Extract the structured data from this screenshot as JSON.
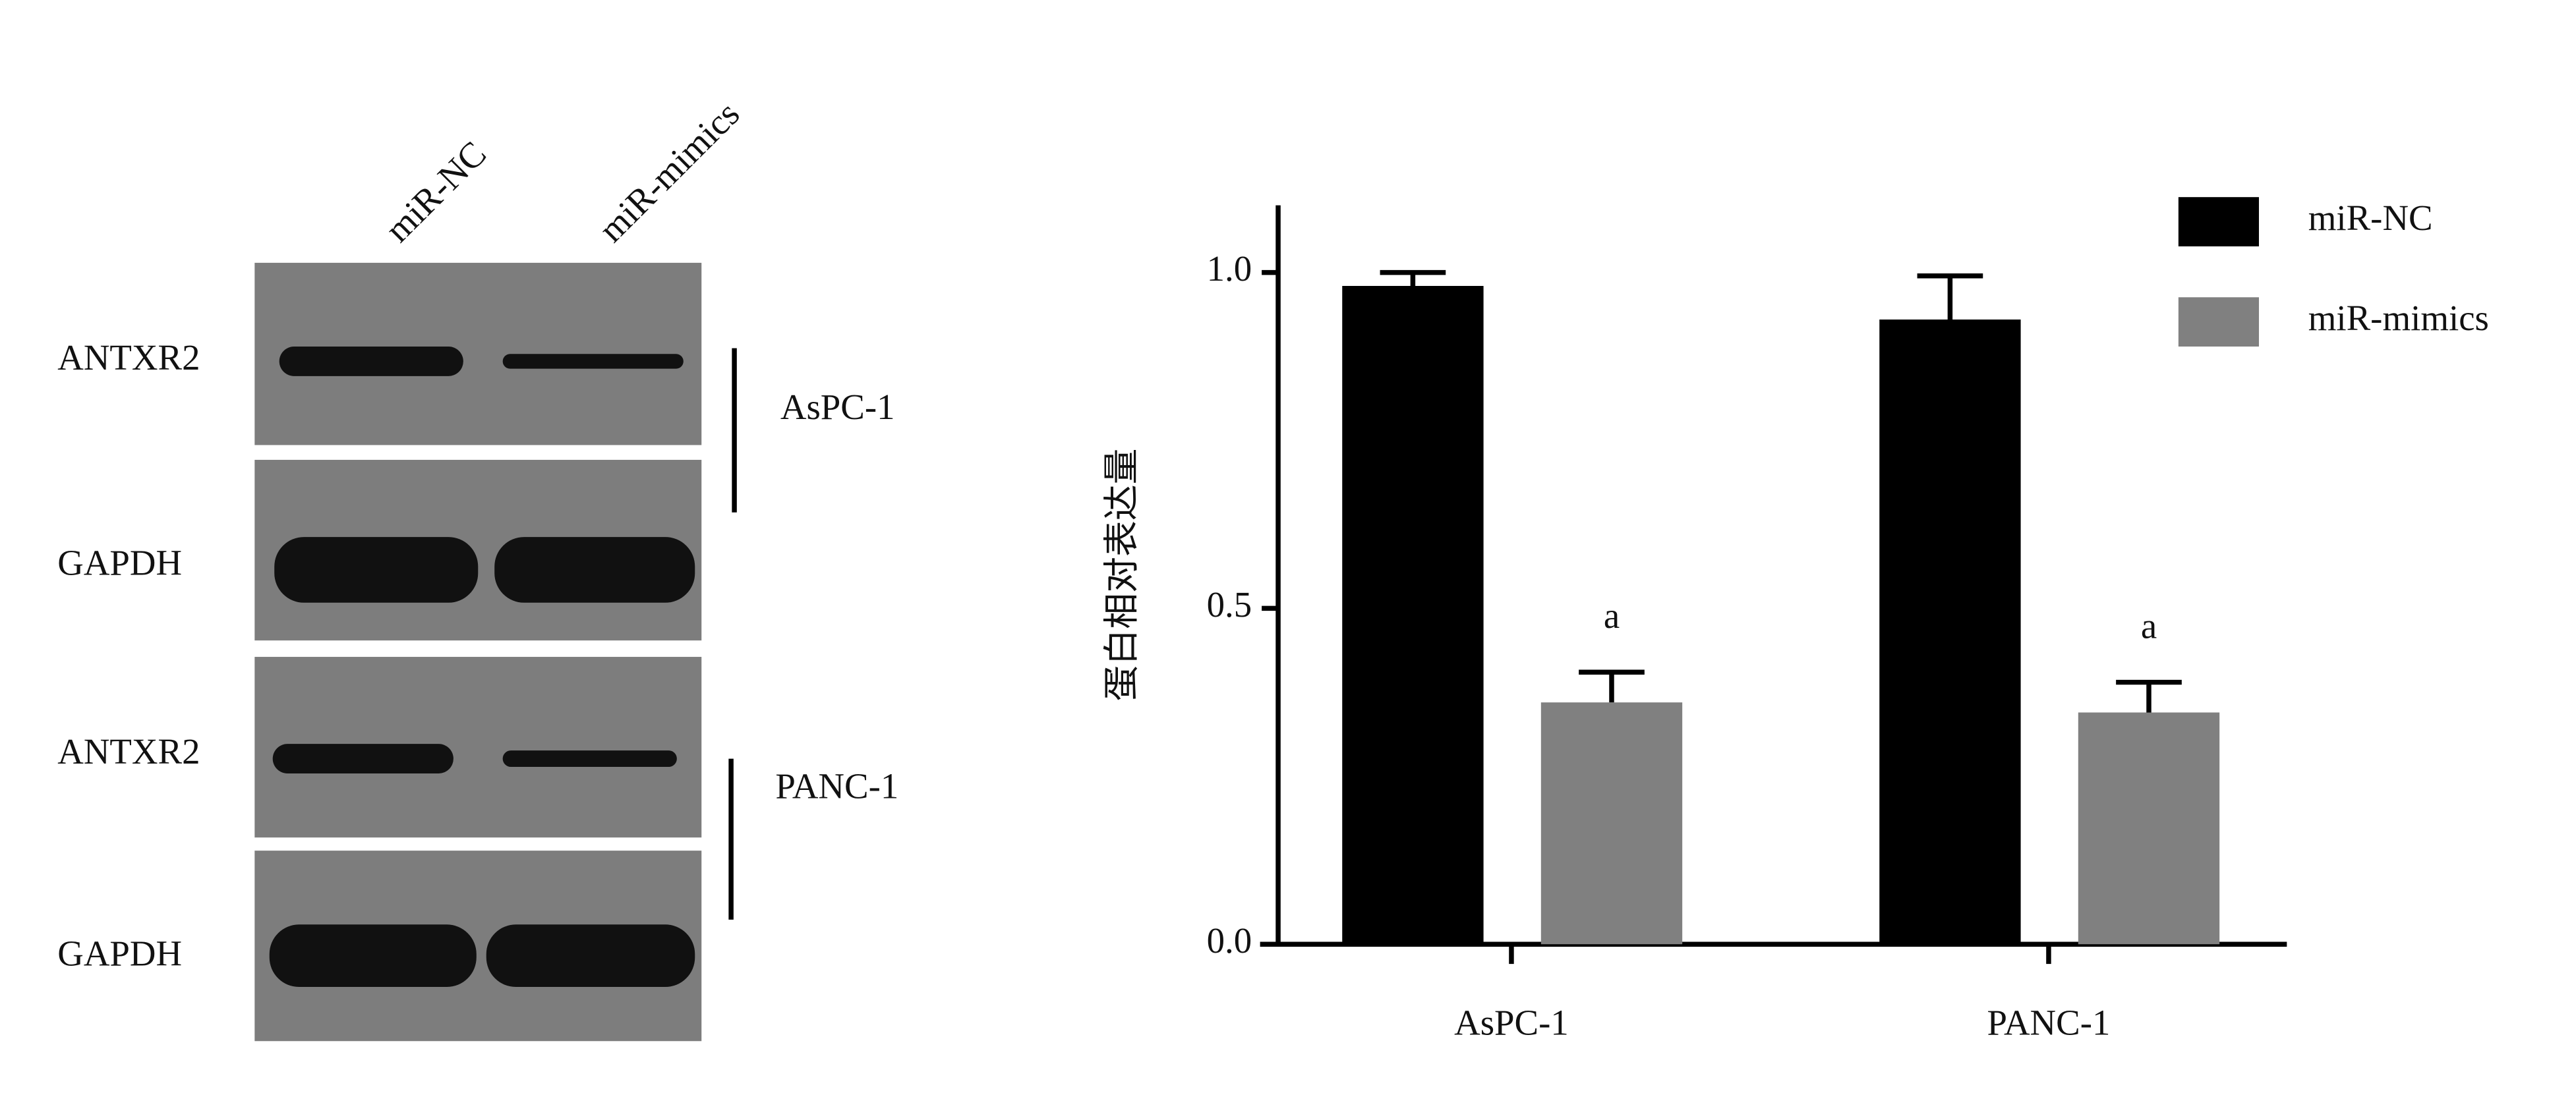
{
  "blot": {
    "lanes": [
      "miR-NC",
      "miR-mimics"
    ],
    "groups": [
      {
        "name": "AsPC-1",
        "rows": [
          "ANTXR2",
          "GAPDH"
        ]
      },
      {
        "name": "PANC-1",
        "rows": [
          "ANTXR2",
          "GAPDH"
        ]
      }
    ]
  },
  "chart_data": {
    "type": "bar",
    "y_label": "蛋白相对表达量",
    "categories": [
      "AsPC-1",
      "PANC-1"
    ],
    "series": [
      {
        "name": "miR-NC",
        "color": "#000000",
        "values": [
          0.98,
          0.93
        ],
        "errors": [
          0.02,
          0.065
        ]
      },
      {
        "name": "miR-mimics",
        "color": "#808080",
        "values": [
          0.36,
          0.345
        ],
        "errors": [
          0.045,
          0.045
        ],
        "significance": [
          "a",
          "a"
        ]
      }
    ],
    "ylim": [
      0,
      1.1
    ],
    "yticks": [
      {
        "value": 0,
        "label": "0.0"
      },
      0.5,
      {
        "value": 1,
        "label": "1.0"
      }
    ],
    "legend": "top-right"
  }
}
